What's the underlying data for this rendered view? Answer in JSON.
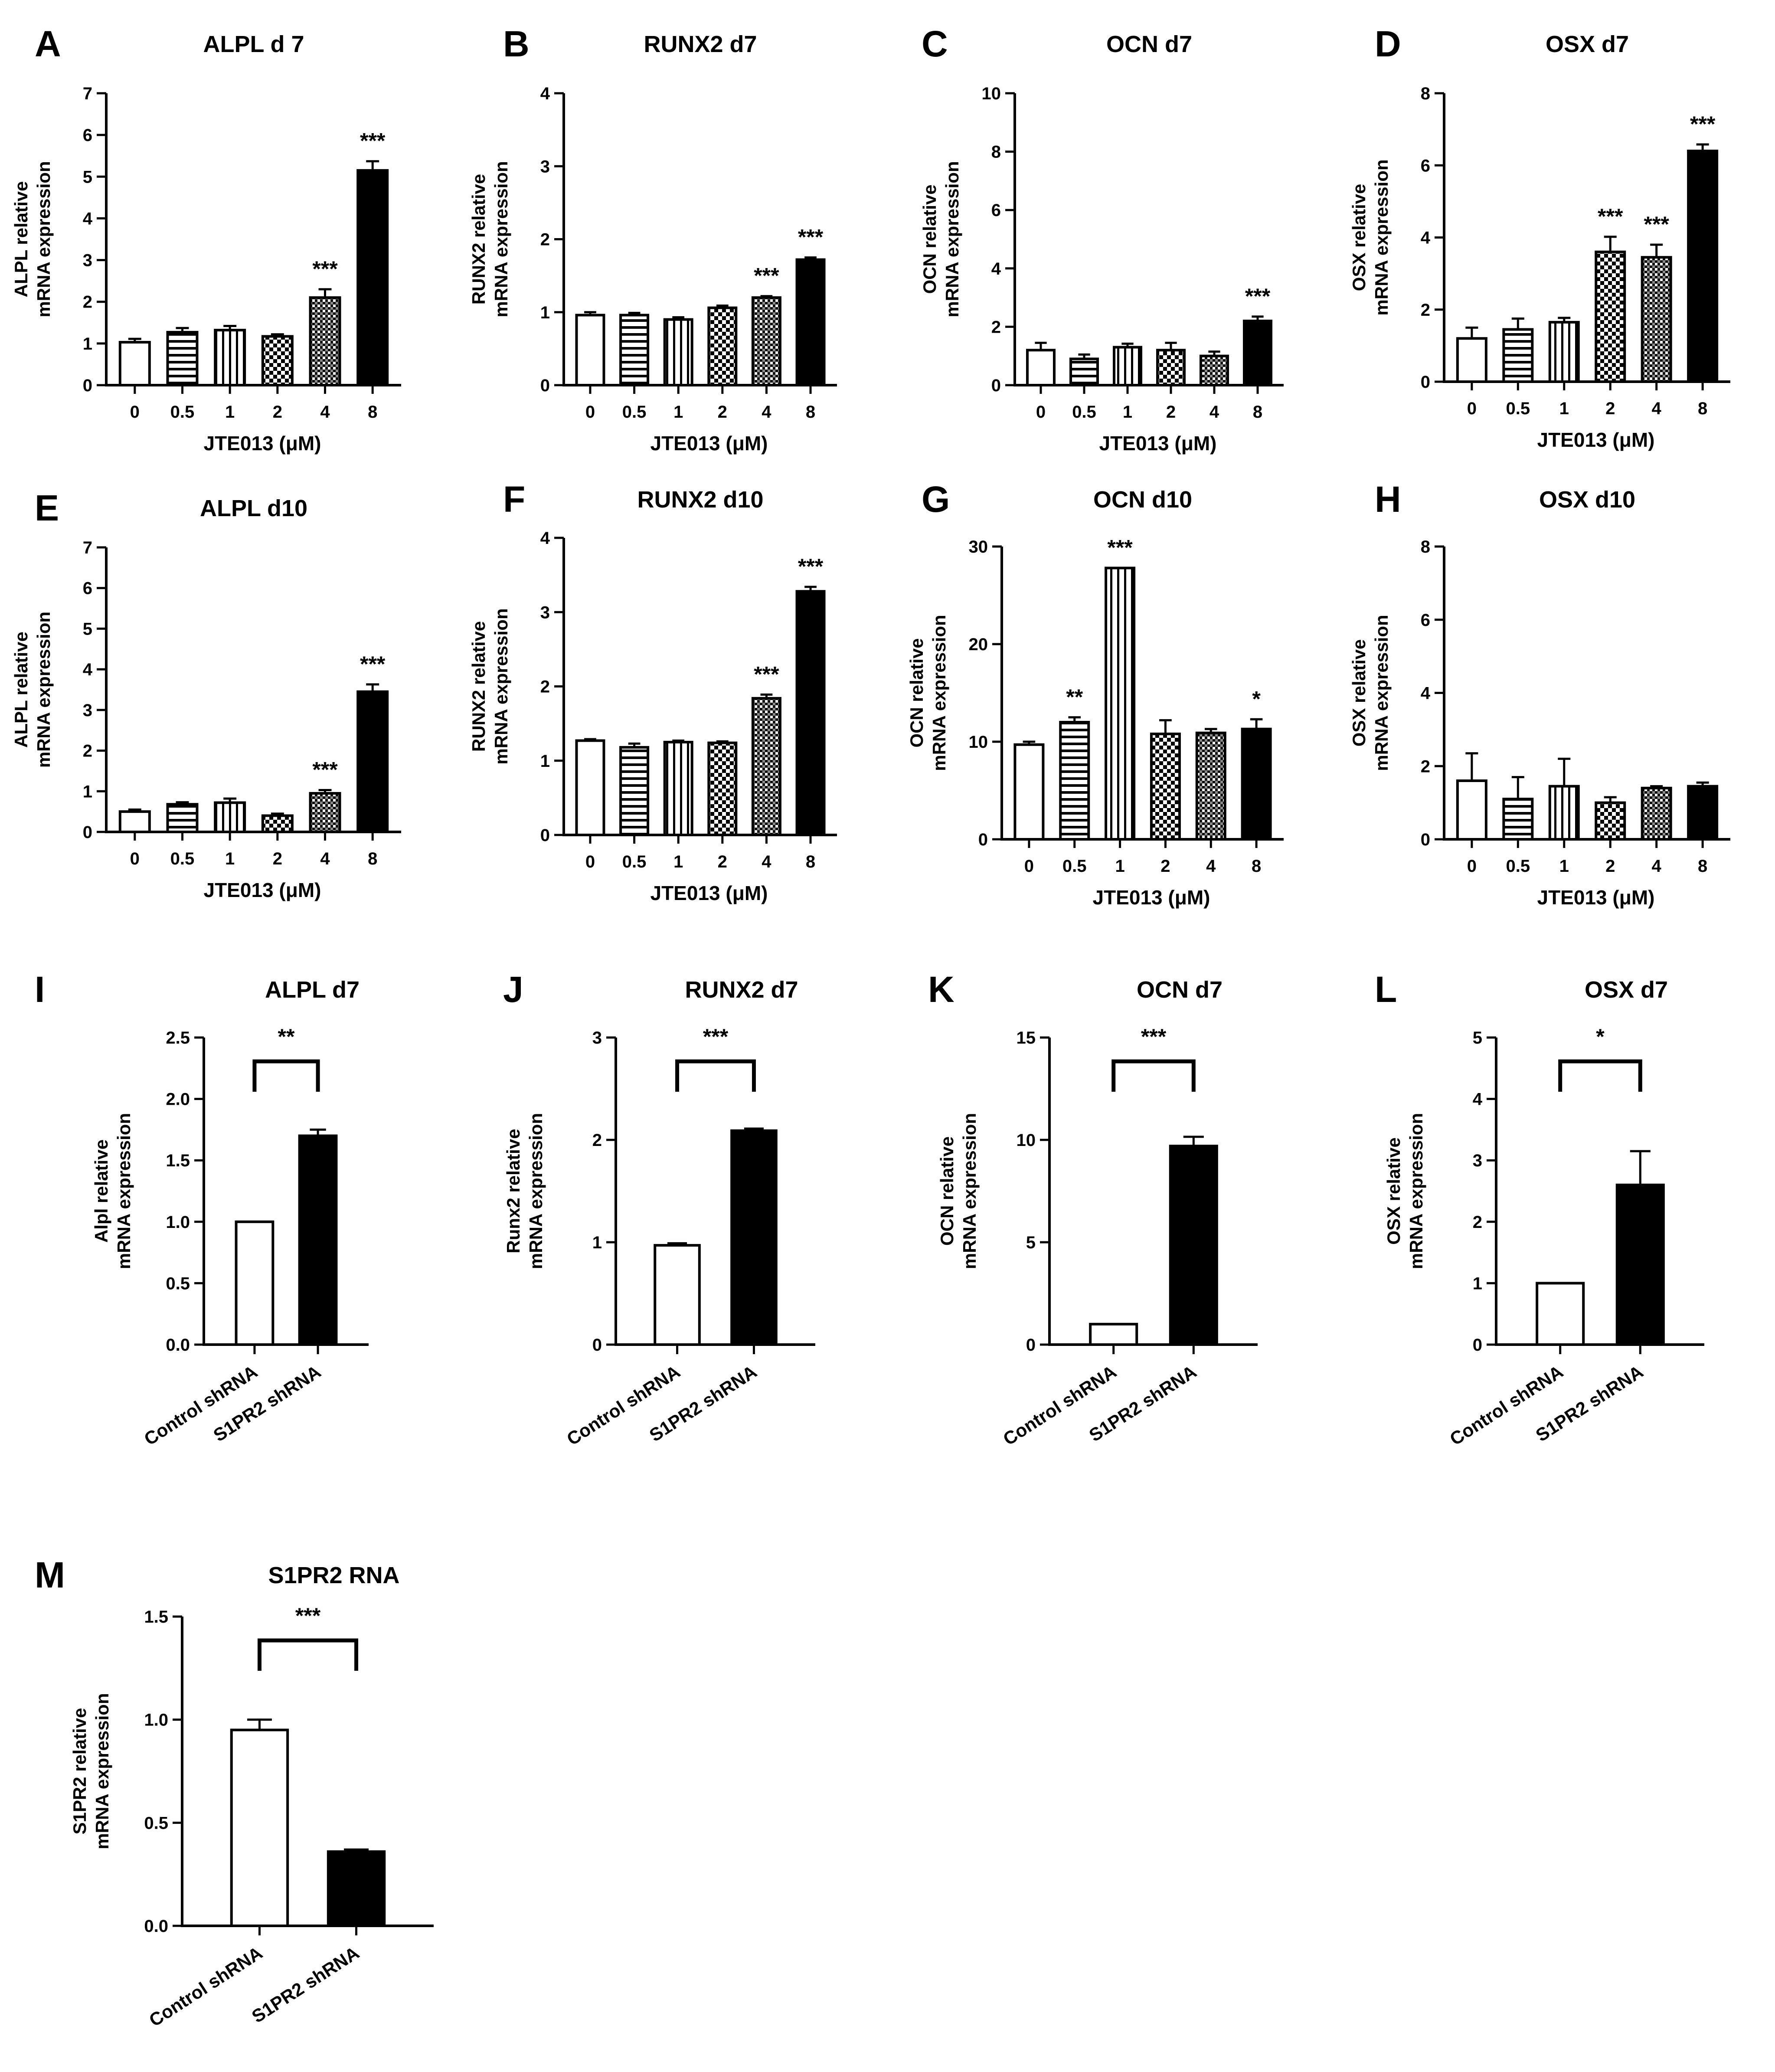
{
  "figure": {
    "background": "#ffffff",
    "ink": "#000000"
  },
  "chart_data": [
    {
      "panel": "A",
      "type": "bar",
      "title": "ALPL d 7",
      "categories": [
        "0",
        "0.5",
        "1",
        "2",
        "4",
        "8"
      ],
      "values": [
        1.03,
        1.27,
        1.32,
        1.17,
        2.1,
        5.15
      ],
      "errors": [
        0.08,
        0.1,
        0.1,
        0.05,
        0.2,
        0.22
      ],
      "significance": [
        "",
        "",
        "",
        "",
        "***",
        "***"
      ],
      "patterns": [
        "open",
        "hstripe",
        "vstripe",
        "dots",
        "check",
        "solid"
      ],
      "ylabel_lines": [
        "ALPL relative",
        "mRNA expression"
      ],
      "xlabel": "JTE013 (μM)",
      "ylim": [
        0,
        7
      ],
      "yticks": [
        "0",
        "1",
        "2",
        "3",
        "4",
        "5",
        "6",
        "7"
      ]
    },
    {
      "panel": "B",
      "type": "bar",
      "title": "RUNX2 d7",
      "categories": [
        "0",
        "0.5",
        "1",
        "2",
        "4",
        "8"
      ],
      "values": [
        0.96,
        0.96,
        0.9,
        1.06,
        1.2,
        1.72
      ],
      "errors": [
        0.04,
        0.03,
        0.03,
        0.03,
        0.02,
        0.03
      ],
      "significance": [
        "",
        "",
        "",
        "",
        "***",
        "***"
      ],
      "patterns": [
        "open",
        "hstripe",
        "vstripe",
        "dots",
        "check",
        "solid"
      ],
      "ylabel_lines": [
        "RUNX2 relative",
        "mRNA expression"
      ],
      "xlabel": "JTE013 (μM)",
      "ylim": [
        0,
        4
      ],
      "yticks": [
        "0",
        "1",
        "2",
        "3",
        "4"
      ]
    },
    {
      "panel": "C",
      "type": "bar",
      "title": "OCN d7",
      "categories": [
        "0",
        "0.5",
        "1",
        "2",
        "4",
        "8"
      ],
      "values": [
        1.2,
        0.9,
        1.3,
        1.2,
        1.0,
        2.2
      ],
      "errors": [
        0.25,
        0.15,
        0.12,
        0.25,
        0.15,
        0.15
      ],
      "significance": [
        "",
        "",
        "",
        "",
        "",
        "***"
      ],
      "patterns": [
        "open",
        "hstripe",
        "vstripe",
        "dots",
        "check",
        "solid"
      ],
      "ylabel_lines": [
        "OCN relative",
        "mRNA expression"
      ],
      "xlabel": "JTE013 (μM)",
      "ylim": [
        0,
        10
      ],
      "yticks": [
        "0",
        "2",
        "4",
        "6",
        "8",
        "10"
      ]
    },
    {
      "panel": "D",
      "type": "bar",
      "title": "OSX d7",
      "categories": [
        "0",
        "0.5",
        "1",
        "2",
        "4",
        "8"
      ],
      "values": [
        1.2,
        1.45,
        1.65,
        3.6,
        3.45,
        6.4
      ],
      "errors": [
        0.3,
        0.3,
        0.12,
        0.42,
        0.35,
        0.18
      ],
      "significance": [
        "",
        "",
        "",
        "***",
        "***",
        "***"
      ],
      "patterns": [
        "open",
        "hstripe",
        "vstripe",
        "dots",
        "check",
        "solid"
      ],
      "ylabel_lines": [
        "OSX relative",
        "mRNA expression"
      ],
      "xlabel": "JTE013 (μM)",
      "ylim": [
        0,
        8
      ],
      "yticks": [
        "0",
        "2",
        "4",
        "6",
        "8"
      ]
    },
    {
      "panel": "E",
      "type": "bar",
      "title": "ALPL d10",
      "categories": [
        "0",
        "0.5",
        "1",
        "2",
        "4",
        "8"
      ],
      "values": [
        0.5,
        0.68,
        0.72,
        0.4,
        0.95,
        3.45
      ],
      "errors": [
        0.05,
        0.05,
        0.1,
        0.05,
        0.08,
        0.18
      ],
      "significance": [
        "",
        "",
        "",
        "",
        "***",
        "***"
      ],
      "patterns": [
        "open",
        "hstripe",
        "vstripe",
        "dots",
        "check",
        "solid"
      ],
      "ylabel_lines": [
        "ALPL relative",
        "mRNA expression"
      ],
      "xlabel": "JTE013 (μM)",
      "ylim": [
        0,
        7
      ],
      "yticks": [
        "0",
        "1",
        "2",
        "3",
        "4",
        "5",
        "6",
        "7"
      ]
    },
    {
      "panel": "F",
      "type": "bar",
      "title": "RUNX2 d10",
      "categories": [
        "0",
        "0.5",
        "1",
        "2",
        "4",
        "8"
      ],
      "values": [
        1.27,
        1.18,
        1.25,
        1.24,
        1.84,
        3.28
      ],
      "errors": [
        0.02,
        0.05,
        0.02,
        0.02,
        0.05,
        0.06
      ],
      "significance": [
        "",
        "",
        "",
        "",
        "***",
        "***"
      ],
      "patterns": [
        "open",
        "hstripe",
        "vstripe",
        "dots",
        "check",
        "solid"
      ],
      "ylabel_lines": [
        "RUNX2 relative",
        "mRNA expression"
      ],
      "xlabel": "JTE013 (μM)",
      "ylim": [
        0,
        4
      ],
      "yticks": [
        "0",
        "1",
        "2",
        "3",
        "4"
      ]
    },
    {
      "panel": "G",
      "type": "bar",
      "title": "OCN d10",
      "categories": [
        "0",
        "0.5",
        "1",
        "2",
        "4",
        "8"
      ],
      "values": [
        9.7,
        12.0,
        27.8,
        10.8,
        10.9,
        11.3
      ],
      "errors": [
        0.3,
        0.5,
        0.0,
        1.4,
        0.4,
        1.0
      ],
      "significance": [
        "",
        "**",
        "***",
        "",
        "",
        "*"
      ],
      "patterns": [
        "open",
        "hstripe",
        "vstripe",
        "dots",
        "check",
        "solid"
      ],
      "ylabel_lines": [
        "OCN relative",
        "mRNA expression"
      ],
      "xlabel": "JTE013 (μM)",
      "ylim": [
        0,
        30
      ],
      "yticks": [
        "0",
        "10",
        "20",
        "30"
      ]
    },
    {
      "panel": "H",
      "type": "bar",
      "title": "OSX d10",
      "categories": [
        "0",
        "0.5",
        "1",
        "2",
        "4",
        "8"
      ],
      "values": [
        1.6,
        1.1,
        1.45,
        1.0,
        1.4,
        1.45
      ],
      "errors": [
        0.75,
        0.6,
        0.75,
        0.15,
        0.05,
        0.1
      ],
      "significance": [
        "",
        "",
        "",
        "",
        "",
        ""
      ],
      "patterns": [
        "open",
        "hstripe",
        "vstripe",
        "dots",
        "check",
        "solid"
      ],
      "ylabel_lines": [
        "OSX relative",
        "mRNA expression"
      ],
      "xlabel": "JTE013 (μM)",
      "ylim": [
        0,
        8
      ],
      "yticks": [
        "0",
        "2",
        "4",
        "6",
        "8"
      ]
    },
    {
      "panel": "I",
      "type": "bar",
      "title": "ALPL d7",
      "categories": [
        "Control shRNA",
        "S1PR2 shRNA"
      ],
      "values": [
        1.0,
        1.7
      ],
      "errors": [
        0.0,
        0.05
      ],
      "bracket": "**",
      "ylabel_lines": [
        "Alpl relative",
        "mRNA expression"
      ],
      "ylim": [
        0,
        2.5
      ],
      "yticks": [
        "0.0",
        "0.5",
        "1.0",
        "1.5",
        "2.0",
        "2.5"
      ]
    },
    {
      "panel": "J",
      "type": "bar",
      "title": "RUNX2 d7",
      "categories": [
        "Control shRNA",
        "S1PR2 shRNA"
      ],
      "values": [
        0.97,
        2.09
      ],
      "errors": [
        0.02,
        0.02
      ],
      "bracket": "***",
      "ylabel_lines": [
        "Runx2 relative",
        "mRNA expression"
      ],
      "ylim": [
        0,
        3
      ],
      "yticks": [
        "0",
        "1",
        "2",
        "3"
      ]
    },
    {
      "panel": "K",
      "type": "bar",
      "title": "OCN d7",
      "categories": [
        "Control shRNA",
        "S1PR2 shRNA"
      ],
      "values": [
        1.0,
        9.7
      ],
      "errors": [
        0.0,
        0.45
      ],
      "bracket": "***",
      "ylabel_lines": [
        "OCN relative",
        "mRNA expression"
      ],
      "ylim": [
        0,
        15
      ],
      "yticks": [
        "0",
        "5",
        "10",
        "15"
      ]
    },
    {
      "panel": "L",
      "type": "bar",
      "title": "OSX d7",
      "categories": [
        "Control shRNA",
        "S1PR2 shRNA"
      ],
      "values": [
        1.0,
        2.6
      ],
      "errors": [
        0.0,
        0.55
      ],
      "bracket": "*",
      "ylabel_lines": [
        "OSX relative",
        "mRNA expression"
      ],
      "ylim": [
        0,
        5
      ],
      "yticks": [
        "0",
        "1",
        "2",
        "3",
        "4",
        "5"
      ]
    },
    {
      "panel": "M",
      "type": "bar",
      "title": "S1PR2 RNA",
      "categories": [
        "Control shRNA",
        "S1PR2 shRNA"
      ],
      "values": [
        0.95,
        0.36
      ],
      "errors": [
        0.05,
        0.01
      ],
      "bracket": "***",
      "ylabel_lines": [
        "S1PR2 relative",
        "mRNA expression"
      ],
      "ylim": [
        0,
        1.5
      ],
      "yticks": [
        "0.0",
        "0.5",
        "1.0",
        "1.5"
      ]
    }
  ]
}
